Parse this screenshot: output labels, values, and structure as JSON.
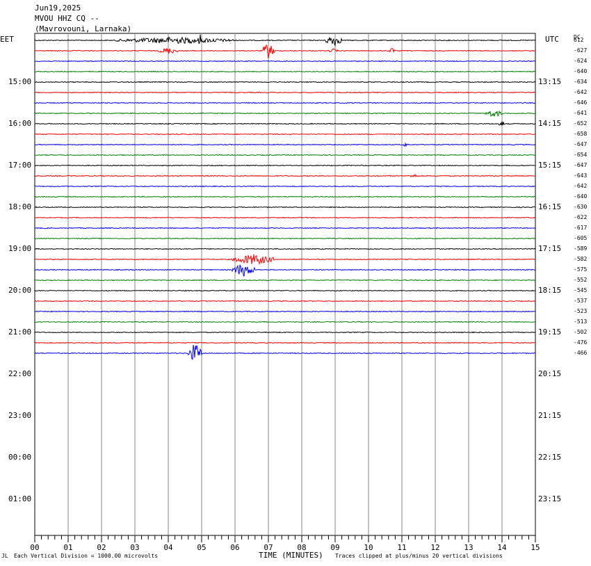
{
  "header": {
    "date": "Jun19,2025",
    "station": "MVOU HHZ CQ --",
    "location": "(Mavrovouni, Larnaka)"
  },
  "left_timezone": "EET",
  "right_timezone": "UTC",
  "dc_label": "DC",
  "footer": {
    "mark": "JL",
    "scale": "Each Vertical Division = 1000.00 microvolts",
    "xlabel": "TIME (MINUTES)",
    "clip": "Traces clipped at plus/minus 20 vertical divisions"
  },
  "chart_data": {
    "type": "line",
    "xlabel": "TIME (MINUTES)",
    "xlim": [
      0,
      15
    ],
    "x_ticks": [
      "00",
      "01",
      "02",
      "03",
      "04",
      "05",
      "06",
      "07",
      "08",
      "09",
      "10",
      "11",
      "12",
      "13",
      "14",
      "15"
    ],
    "left_hour_labels": [
      "15:00",
      "16:00",
      "17:00",
      "18:00",
      "19:00",
      "20:00",
      "21:00",
      "22:00",
      "23:00",
      "00:00",
      "01:00"
    ],
    "right_hour_labels": [
      "13:15",
      "14:15",
      "15:15",
      "16:15",
      "17:15",
      "18:15",
      "19:15",
      "20:15",
      "21:15",
      "22:15",
      "23:15"
    ],
    "trace_colors": [
      "#000000",
      "#ff0000",
      "#0000ff",
      "#008000"
    ],
    "dc_offsets": [
      612,
      -627,
      -624,
      -640,
      -634,
      -642,
      -646,
      -641,
      -652,
      -658,
      -647,
      -654,
      -647,
      -643,
      -642,
      -640,
      -630,
      -622,
      -617,
      -605,
      -589,
      -582,
      -575,
      -552,
      -545,
      -537,
      -523,
      -513,
      -502,
      -476,
      -466
    ],
    "events": [
      {
        "trace": 0,
        "start": 2.4,
        "end": 6.0,
        "amp": 5
      },
      {
        "trace": 0,
        "start": 4.9,
        "end": 5.0,
        "amp": 10
      },
      {
        "trace": 0,
        "start": 8.7,
        "end": 9.2,
        "amp": 9
      },
      {
        "trace": 1,
        "start": 3.7,
        "end": 4.3,
        "amp": 5
      },
      {
        "trace": 1,
        "start": 6.8,
        "end": 7.2,
        "amp": 12
      },
      {
        "trace": 1,
        "start": 8.8,
        "end": 9.1,
        "amp": 3
      },
      {
        "trace": 1,
        "start": 10.6,
        "end": 10.8,
        "amp": 4
      },
      {
        "trace": 7,
        "start": 13.5,
        "end": 14.0,
        "amp": 6
      },
      {
        "trace": 8,
        "start": 13.9,
        "end": 14.1,
        "amp": 5
      },
      {
        "trace": 10,
        "start": 11.0,
        "end": 11.2,
        "amp": 3
      },
      {
        "trace": 13,
        "start": 11.2,
        "end": 11.5,
        "amp": 3
      },
      {
        "trace": 21,
        "start": 5.9,
        "end": 7.2,
        "amp": 8
      },
      {
        "trace": 22,
        "start": 5.9,
        "end": 6.6,
        "amp": 10
      },
      {
        "trace": 30,
        "start": 4.6,
        "end": 5.0,
        "amp": 15
      }
    ]
  }
}
